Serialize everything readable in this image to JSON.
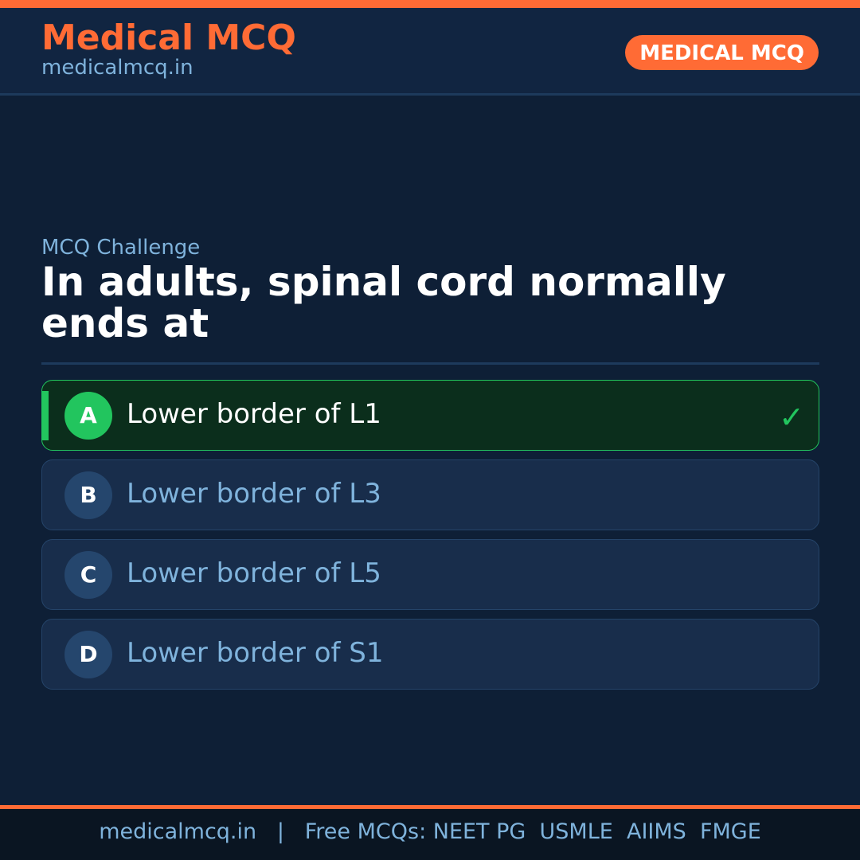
{
  "header": {
    "brand": "Medical MCQ",
    "site": "medicalmcq.in",
    "badge": "MEDICAL MCQ"
  },
  "quiz": {
    "kicker": "MCQ Challenge",
    "question": "In adults, spinal cord normally ends at",
    "options": [
      {
        "letter": "A",
        "text": "Lower border of L1",
        "correct": true
      },
      {
        "letter": "B",
        "text": "Lower border of L3"
      },
      {
        "letter": "C",
        "text": "Lower border of L5"
      },
      {
        "letter": "D",
        "text": "Lower border of S1"
      }
    ]
  },
  "footer": {
    "text": "medicalmcq.in   |   Free MCQs: NEET PG  USMLE  AIIMS  FMGE"
  },
  "colors": {
    "accent": "#ff6b35",
    "correct": "#22c55e",
    "background": "#0e1f36"
  },
  "icons": {
    "correct": "check-icon"
  }
}
